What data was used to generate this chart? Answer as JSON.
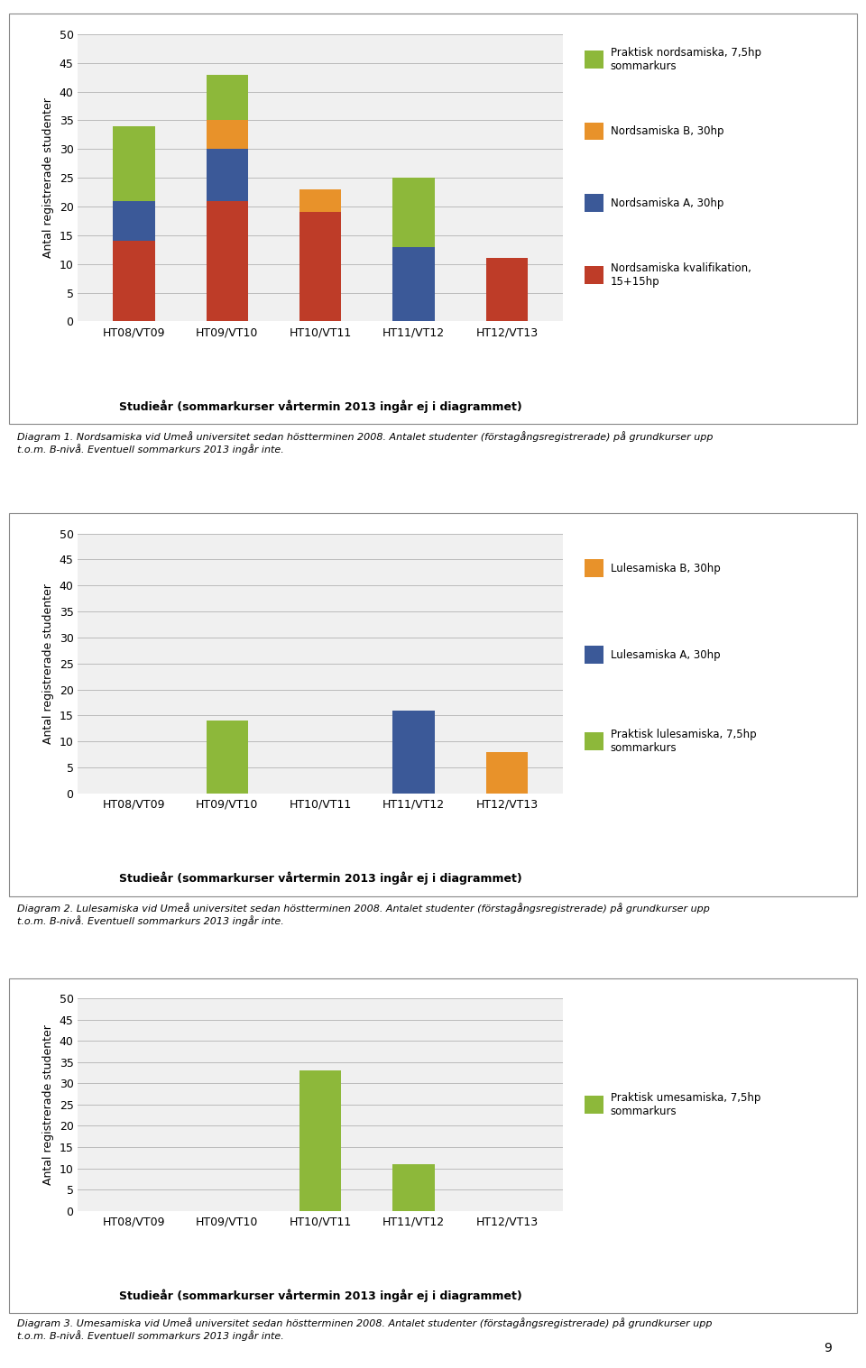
{
  "chart1": {
    "categories": [
      "HT08/VT09",
      "HT09/VT10",
      "HT10/VT11",
      "HT11/VT12",
      "HT12/VT13"
    ],
    "kvalifikation": [
      14,
      21,
      19,
      0,
      11
    ],
    "A": [
      7,
      9,
      0,
      13,
      0
    ],
    "B": [
      0,
      5,
      4,
      0,
      0
    ],
    "green": [
      13,
      8,
      0,
      12,
      0
    ],
    "color_kvalifikation": "#BE3C28",
    "color_A": "#3B5998",
    "color_B": "#E8922A",
    "color_green": "#8DB83A",
    "ylabel": "Antal registrerade studenter",
    "xlabel": "Studieår (sommarkurser vårtermin 2013 ingår ej i diagrammet)",
    "ylim": [
      0,
      50
    ],
    "yticks": [
      0,
      5,
      10,
      15,
      20,
      25,
      30,
      35,
      40,
      45,
      50
    ],
    "legend_labels": [
      "Praktisk nordsamiska, 7,5hp\nsommarkurs",
      "Nordsamiska B, 30hp",
      "Nordsamiska A, 30hp",
      "Nordsamiska kvalifikation,\n15+15hp"
    ],
    "diagram_label": "Diagram 1. Nordsamiska vid Umeå universitet sedan höstterminen 2008. Antalet studenter (förstagångsregistrerade) på grundkurser upp\nt.o.m. B-nivå. Eventuell sommarkurs 2013 ingår inte."
  },
  "chart2": {
    "categories": [
      "HT08/VT09",
      "HT09/VT10",
      "HT10/VT11",
      "HT11/VT12",
      "HT12/VT13"
    ],
    "lulesam_green": [
      0,
      14,
      0,
      0,
      0
    ],
    "lulesam_A": [
      0,
      0,
      0,
      16,
      0
    ],
    "lulesam_B": [
      0,
      0,
      0,
      0,
      8
    ],
    "color_lulesam_B": "#E8922A",
    "color_lulesam_A": "#3B5998",
    "color_lulesam_green": "#8DB83A",
    "ylabel": "Antal registrerade studenter",
    "xlabel": "Studieår (sommarkurser vårtermin 2013 ingår ej i diagrammet)",
    "ylim": [
      0,
      50
    ],
    "yticks": [
      0,
      5,
      10,
      15,
      20,
      25,
      30,
      35,
      40,
      45,
      50
    ],
    "legend_labels": [
      "Lulesamiska B, 30hp",
      "Lulesamiska A, 30hp",
      "Praktisk lulesamiska, 7,5hp\nsommarkurs"
    ],
    "diagram_label": "Diagram 2. Lulesamiska vid Umeå universitet sedan höstterminen 2008. Antalet studenter (förstagångsregistrerade) på grundkurser upp\nt.o.m. B-nivå. Eventuell sommarkurs 2013 ingår inte."
  },
  "chart3": {
    "categories": [
      "HT08/VT09",
      "HT09/VT10",
      "HT10/VT11",
      "HT11/VT12",
      "HT12/VT13"
    ],
    "umesam_green": [
      0,
      0,
      33,
      11,
      0
    ],
    "color_umesam_green": "#8DB83A",
    "ylabel": "Antal registrerade studenter",
    "xlabel": "Studieår (sommarkurser vårtermin 2013 ingår ej i diagrammet)",
    "ylim": [
      0,
      50
    ],
    "yticks": [
      0,
      5,
      10,
      15,
      20,
      25,
      30,
      35,
      40,
      45,
      50
    ],
    "legend_labels": [
      "Praktisk umesamiska, 7,5hp\nsommarkurs"
    ],
    "diagram_label": "Diagram 3. Umesamiska vid Umeå universitet sedan höstterminen 2008. Antalet studenter (förstagångsregistrerade) på grundkurser upp\nt.o.m. B-nivå. Eventuell sommarkurs 2013 ingår inte."
  },
  "page_number": "9",
  "background_color": "#ffffff"
}
